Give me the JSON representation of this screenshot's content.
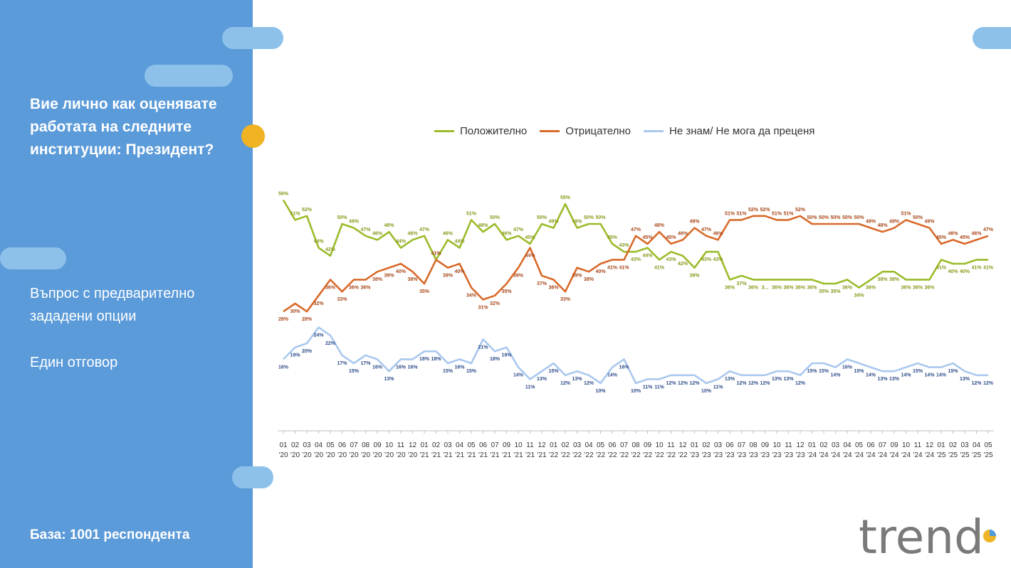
{
  "sidebar": {
    "question": "Вие лично как оценявате работата на следните институции: Президент?",
    "question_type": "Въпрос с предварително зададени опции",
    "answer_type": "Един отговор",
    "base": "База:  1001 респондента"
  },
  "brand": {
    "logo_text": "trend"
  },
  "colors": {
    "sidebar": "#5b9bd9",
    "positive": "#9bbb2a",
    "negative": "#d86a2a",
    "dont_know": "#a9c8ee",
    "accent_dot": "#f0b323"
  },
  "chart_data": {
    "type": "line",
    "title": "",
    "xlabel": "",
    "ylabel": "",
    "legend_position": "top",
    "grid": false,
    "categories": [
      "01 '20",
      "02 '20",
      "03 '20",
      "04 '20",
      "05 '20",
      "06 '20",
      "07 '20",
      "08 '20",
      "09 '20",
      "10 '20",
      "11 '20",
      "12 '20",
      "01 '21",
      "02 '21",
      "03 '21",
      "04 '21",
      "05 '21",
      "06 '21",
      "07 '21",
      "09 '21",
      "10 '21",
      "11 '21",
      "12 '21",
      "01 '22",
      "02 '22",
      "03 '22",
      "04 '22",
      "05 '22",
      "06 '22",
      "07 '22",
      "08 '22",
      "09 '22",
      "10 '22",
      "11 '22",
      "12 '22",
      "01 '23",
      "02 '23",
      "03 '23",
      "06 '23",
      "07 '23",
      "08 '23",
      "09 '23",
      "10 '23",
      "11 '23",
      "12 '23",
      "01 '24",
      "02 '24",
      "03 '24",
      "04 '24",
      "05 '24",
      "06 '24",
      "07 '24",
      "09 '24",
      "10 '24",
      "11 '24",
      "12 '24",
      "01 '25",
      "02 '25",
      "03 '25",
      "04 '25",
      "05 '25"
    ],
    "tick_top": [
      "01",
      "02",
      "03",
      "04",
      "05",
      "06",
      "07",
      "08",
      "09",
      "10",
      "11",
      "12",
      "01",
      "02",
      "03",
      "04",
      "05",
      "06",
      "07",
      "09",
      "10",
      "11",
      "12",
      "01",
      "02",
      "03",
      "04",
      "05",
      "06",
      "07",
      "08",
      "09",
      "10",
      "11",
      "12",
      "01",
      "02",
      "03",
      "06",
      "07",
      "08",
      "09",
      "10",
      "11",
      "12",
      "01",
      "02",
      "03",
      "04",
      "05",
      "06",
      "07",
      "09",
      "10",
      "11",
      "12",
      "01",
      "02",
      "03",
      "04",
      "05"
    ],
    "tick_bottom": [
      "'20",
      "'20",
      "'20",
      "'20",
      "'20",
      "'20",
      "'20",
      "'20",
      "'20",
      "'20",
      "'20",
      "'20",
      "'21",
      "'21",
      "'21",
      "'21",
      "'21",
      "'21",
      "'21",
      "'21",
      "'21",
      "'21",
      "'21",
      "'22",
      "'22",
      "'22",
      "'22",
      "'22",
      "'22",
      "'22",
      "'22",
      "'22",
      "'22",
      "'22",
      "'22",
      "'23",
      "'23",
      "'23",
      "'23",
      "'23",
      "'23",
      "'23",
      "'23",
      "'23",
      "'23",
      "'24",
      "'24",
      "'24",
      "'24",
      "'24",
      "'24",
      "'24",
      "'24",
      "'24",
      "'24",
      "'24",
      "'25",
      "'25",
      "'25",
      "'25",
      "'25"
    ],
    "series": [
      {
        "name": "Положително",
        "color": "#9bbb2a",
        "values": [
          56,
          51,
          52,
          44,
          42,
          50,
          49,
          47,
          46,
          48,
          44,
          46,
          47,
          41,
          46,
          44,
          51,
          48,
          50,
          46,
          47,
          45,
          50,
          49,
          55,
          49,
          50,
          50,
          45,
          43,
          43,
          44,
          41,
          43,
          42,
          39,
          43,
          43,
          36,
          37,
          36,
          36,
          36,
          36,
          36,
          36,
          35,
          35,
          36,
          34,
          36,
          38,
          38,
          36,
          36,
          36,
          41,
          40,
          40,
          41,
          41
        ],
        "labels": [
          "56%",
          "51%",
          "52%",
          "44%",
          "42%",
          "50%",
          "49%",
          "47%",
          "46%",
          "48%",
          "44%",
          "46%",
          "47%",
          "41%",
          "46%",
          "44%",
          "51%",
          "48%",
          "50%",
          "46%",
          "47%",
          "45%",
          "50%",
          "49%",
          "55%",
          "49%",
          "50%",
          "50%",
          "45%",
          "43%",
          "43%",
          "44%",
          "41%",
          "43%",
          "42%",
          "39%",
          "43%",
          "43%",
          "36%",
          "37%",
          "36%",
          "3...",
          "36%",
          "36%",
          "36%",
          "36%",
          "35%",
          "35%",
          "36%",
          "34%",
          "36%",
          "38%",
          "38%",
          "36%",
          "36%",
          "36%",
          "41%",
          "40%",
          "40%",
          "41%",
          "41%"
        ]
      },
      {
        "name": "Отрицателно",
        "color": "#d86a2a",
        "values": [
          28,
          30,
          28,
          32,
          36,
          33,
          36,
          36,
          38,
          39,
          40,
          38,
          35,
          41,
          39,
          40,
          34,
          31,
          32,
          35,
          39,
          44,
          37,
          36,
          33,
          39,
          38,
          40,
          41,
          41,
          47,
          45,
          48,
          45,
          46,
          49,
          47,
          46,
          51,
          51,
          52,
          52,
          51,
          51,
          52,
          50,
          50,
          50,
          50,
          50,
          49,
          48,
          49,
          51,
          50,
          49,
          45,
          46,
          45,
          46,
          47
        ],
        "labels": [
          "28%",
          "30%",
          "28%",
          "32%",
          "36%",
          "33%",
          "36%",
          "36%",
          "38%",
          "39%",
          "40%",
          "38%",
          "35%",
          "41%",
          "39%",
          "40%",
          "34%",
          "31%",
          "32%",
          "35%",
          "39%",
          "44%",
          "37%",
          "36%",
          "33%",
          "39%",
          "38%",
          "40%",
          "41%",
          "41%",
          "47%",
          "45%",
          "48%",
          "45%",
          "46%",
          "49%",
          "47%",
          "46%",
          "51%",
          "51%",
          "52%",
          "52%",
          "51%",
          "51%",
          "52%",
          "50%",
          "50%",
          "50%",
          "50%",
          "50%",
          "49%",
          "48%",
          "49%",
          "51%",
          "50%",
          "49%",
          "45%",
          "46%",
          "45%",
          "46%",
          "47%"
        ]
      },
      {
        "name": "Не знам/ Не мога да преценя",
        "color": "#a9c8ee",
        "values": [
          16,
          19,
          20,
          24,
          22,
          17,
          15,
          17,
          16,
          13,
          16,
          16,
          18,
          18,
          15,
          16,
          15,
          21,
          18,
          19,
          14,
          11,
          13,
          15,
          12,
          13,
          12,
          10,
          14,
          16,
          10,
          11,
          11,
          12,
          12,
          12,
          10,
          11,
          13,
          12,
          12,
          12,
          13,
          13,
          12,
          15,
          15,
          14,
          16,
          15,
          14,
          13,
          13,
          14,
          15,
          14,
          14,
          15,
          13,
          12,
          12
        ],
        "labels": [
          "16%",
          "19%",
          "20%",
          "24%",
          "22%",
          "17%",
          "15%",
          "17%",
          "16%",
          "13%",
          "16%",
          "16%",
          "18%",
          "18%",
          "15%",
          "16%",
          "15%",
          "21%",
          "18%",
          "19%",
          "14%",
          "11%",
          "13%",
          "15%",
          "12%",
          "13%",
          "12%",
          "10%",
          "14%",
          "16%",
          "10%",
          "11%",
          "11%",
          "12%",
          "12%",
          "12%",
          "10%",
          "11%",
          "13%",
          "12%",
          "12%",
          "12%",
          "13%",
          "13%",
          "12%",
          "15%",
          "15%",
          "14%",
          "16%",
          "15%",
          "14%",
          "13%",
          "13%",
          "14%",
          "15%",
          "14%",
          "14%",
          "15%",
          "13%",
          "12%",
          "12%"
        ]
      }
    ]
  }
}
